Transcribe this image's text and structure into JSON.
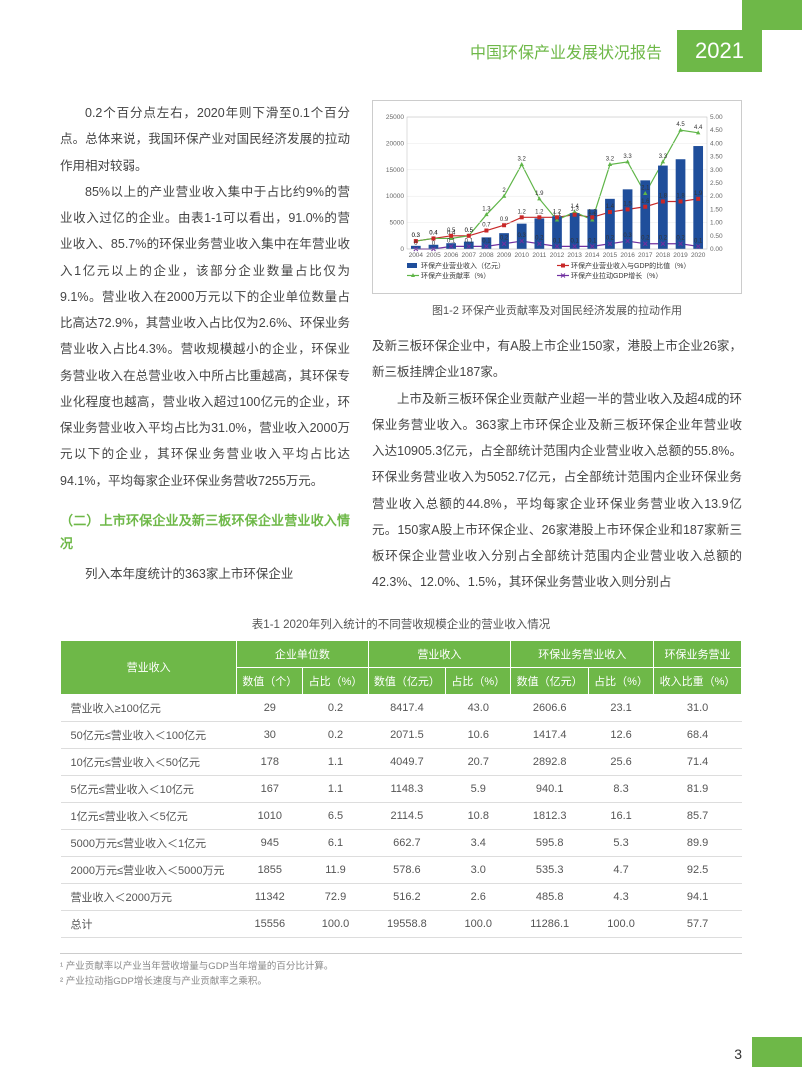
{
  "header": {
    "title": "中国环保产业发展状况报告",
    "year": "2021"
  },
  "pageNum": "3",
  "columnLeft": {
    "p1": "0.2个百分点左右，2020年则下滑至0.1个百分点。总体来说，我国环保产业对国民经济发展的拉动作用相对较弱。",
    "p2": "85%以上的产业营业收入集中于占比约9%的营业收入过亿的企业。由表1-1可以看出，91.0%的营业收入、85.7%的环保业务营业收入集中在年营业收入1亿元以上的企业，该部分企业数量占比仅为9.1%。营业收入在2000万元以下的企业单位数量占比高达72.9%，其营业收入占比仅为2.6%、环保业务营业收入占比4.3%。营收规模越小的企业，环保业务营业收入在总营业收入中所占比重越高，其环保专业化程度也越高，营业收入超过100亿元的企业，环保业务营业收入平均占比为31.0%，营业收入2000万元以下的企业，其环保业务营业收入平均占比达94.1%，平均每家企业环保业务营收7255万元。",
    "sectionTitle": "（二）上市环保企业及新三板环保企业营业收入情况",
    "p3": "列入本年度统计的363家上市环保企业"
  },
  "columnRight": {
    "p1": "及新三板环保企业中，有A股上市企业150家，港股上市企业26家，新三板挂牌企业187家。",
    "p2": "上市及新三板环保企业贡献产业超一半的营业收入及超4成的环保业务营业收入。363家上市环保企业及新三板环保企业年营业收入达10905.3亿元，占全部统计范围内企业营业收入总额的55.8%。环保业务营业收入为5052.7亿元，占全部统计范围内企业环保业务营业收入总额的44.8%，平均每家企业环保业务营业收入13.9亿元。150家A股上市环保企业、26家港股上市环保企业和187家新三板环保企业营业收入分别占全部统计范围内企业营业收入总额的42.3%、12.0%、1.5%，其环保业务营业收入则分别占"
  },
  "chart": {
    "caption": "图1-2 环保产业贡献率及对国民经济发展的拉动作用",
    "type": "combo-bar-line",
    "years": [
      "2004",
      "2005",
      "2006",
      "2007",
      "2008",
      "2009",
      "2010",
      "2011",
      "2012",
      "2013",
      "2014",
      "2015",
      "2016",
      "2017",
      "2018",
      "2019",
      "2020"
    ],
    "bars": [
      600,
      800,
      1100,
      1400,
      2200,
      3000,
      4800,
      5800,
      6200,
      6800,
      7500,
      9500,
      11300,
      13000,
      15800,
      17000,
      19500
    ],
    "line1_red": [
      0.3,
      0.4,
      0.5,
      0.5,
      0.7,
      0.9,
      1.2,
      1.2,
      1.2,
      1.3,
      1.2,
      1.4,
      1.5,
      1.6,
      1.8,
      1.8,
      1.9
    ],
    "line2_green": [
      0.3,
      0.4,
      0.4,
      0.5,
      1.3,
      2.0,
      3.2,
      1.9,
      1.1,
      1.4,
      1.1,
      3.2,
      3.3,
      2.1,
      3.3,
      4.5,
      4.4
    ],
    "line3_purple": [
      0.0,
      0.0,
      0.1,
      0.1,
      0.1,
      0.2,
      0.3,
      0.2,
      0.1,
      0.1,
      0.1,
      0.2,
      0.3,
      0.2,
      0.2,
      0.2,
      0.1
    ],
    "y1_max": 25000,
    "y1_ticks": [
      0,
      5000,
      10000,
      15000,
      20000,
      25000
    ],
    "y2_max": 5.0,
    "y2_ticks": [
      "0.00",
      "0.50",
      "1.00",
      "1.50",
      "2.00",
      "2.50",
      "3.00",
      "3.50",
      "4.00",
      "4.50",
      "5.00"
    ],
    "legend": {
      "bar": "环保产业营业收入（亿元）",
      "red": "环保产业营业收入与GDP的比值（%）",
      "green": "环保产业贡献率（%）",
      "purple": "环保产业拉动GDP增长（%）"
    },
    "colors": {
      "bar": "#1f4e9b",
      "red": "#c82828",
      "green": "#5fb548",
      "purple": "#7030a0",
      "grid": "#e8e8e8",
      "border": "#bbb"
    }
  },
  "table": {
    "caption": "表1-1 2020年列入统计的不同营收规模企业的营业收入情况",
    "headerRow1": [
      "营业收入",
      "企业单位数",
      "营业收入",
      "环保业务营业收入",
      "环保业务营业"
    ],
    "headerRow2": [
      "数值（个）",
      "占比（%）",
      "数值（亿元）",
      "占比（%）",
      "数值（亿元）",
      "占比（%）",
      "收入比重（%）"
    ],
    "rows": [
      [
        "营业收入≥100亿元",
        "29",
        "0.2",
        "8417.4",
        "43.0",
        "2606.6",
        "23.1",
        "31.0"
      ],
      [
        "50亿元≤营业收入＜100亿元",
        "30",
        "0.2",
        "2071.5",
        "10.6",
        "1417.4",
        "12.6",
        "68.4"
      ],
      [
        "10亿元≤营业收入＜50亿元",
        "178",
        "1.1",
        "4049.7",
        "20.7",
        "2892.8",
        "25.6",
        "71.4"
      ],
      [
        "5亿元≤营业收入＜10亿元",
        "167",
        "1.1",
        "1148.3",
        "5.9",
        "940.1",
        "8.3",
        "81.9"
      ],
      [
        "1亿元≤营业收入＜5亿元",
        "1010",
        "6.5",
        "2114.5",
        "10.8",
        "1812.3",
        "16.1",
        "85.7"
      ],
      [
        "5000万元≤营业收入＜1亿元",
        "945",
        "6.1",
        "662.7",
        "3.4",
        "595.8",
        "5.3",
        "89.9"
      ],
      [
        "2000万元≤营业收入＜5000万元",
        "1855",
        "11.9",
        "578.6",
        "3.0",
        "535.3",
        "4.7",
        "92.5"
      ],
      [
        "营业收入＜2000万元",
        "11342",
        "72.9",
        "516.2",
        "2.6",
        "485.8",
        "4.3",
        "94.1"
      ],
      [
        "总计",
        "15556",
        "100.0",
        "19558.8",
        "100.0",
        "11286.1",
        "100.0",
        "57.7"
      ]
    ],
    "header_bg": "#6eb848"
  },
  "footnotes": {
    "f1": "¹ 产业贡献率以产业当年营收增量与GDP当年增量的百分比计算。",
    "f2": "² 产业拉动指GDP增长速度与产业贡献率之乘积。"
  }
}
